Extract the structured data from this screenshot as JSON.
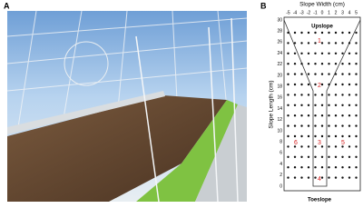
{
  "panel_a": {
    "label": "A"
  },
  "panel_b": {
    "label": "B",
    "x_axis_label": "Slope Width (cm)",
    "y_axis_label": "Slope Length (cm)",
    "x_ticks": [
      -5,
      -4,
      -3,
      -2,
      -1,
      0,
      1,
      2,
      3,
      4,
      5
    ],
    "y_ticks": [
      0,
      2,
      4,
      6,
      8,
      10,
      12,
      14,
      16,
      18,
      20,
      22,
      24,
      26,
      28,
      30
    ],
    "top_label": "Upslope",
    "bottom_label": "Toeslope",
    "zones": [
      {
        "label": "1"
      },
      {
        "label": "2"
      },
      {
        "label": "3"
      },
      {
        "label": "4"
      },
      {
        "label": "5"
      },
      {
        "label": "6"
      }
    ]
  }
}
